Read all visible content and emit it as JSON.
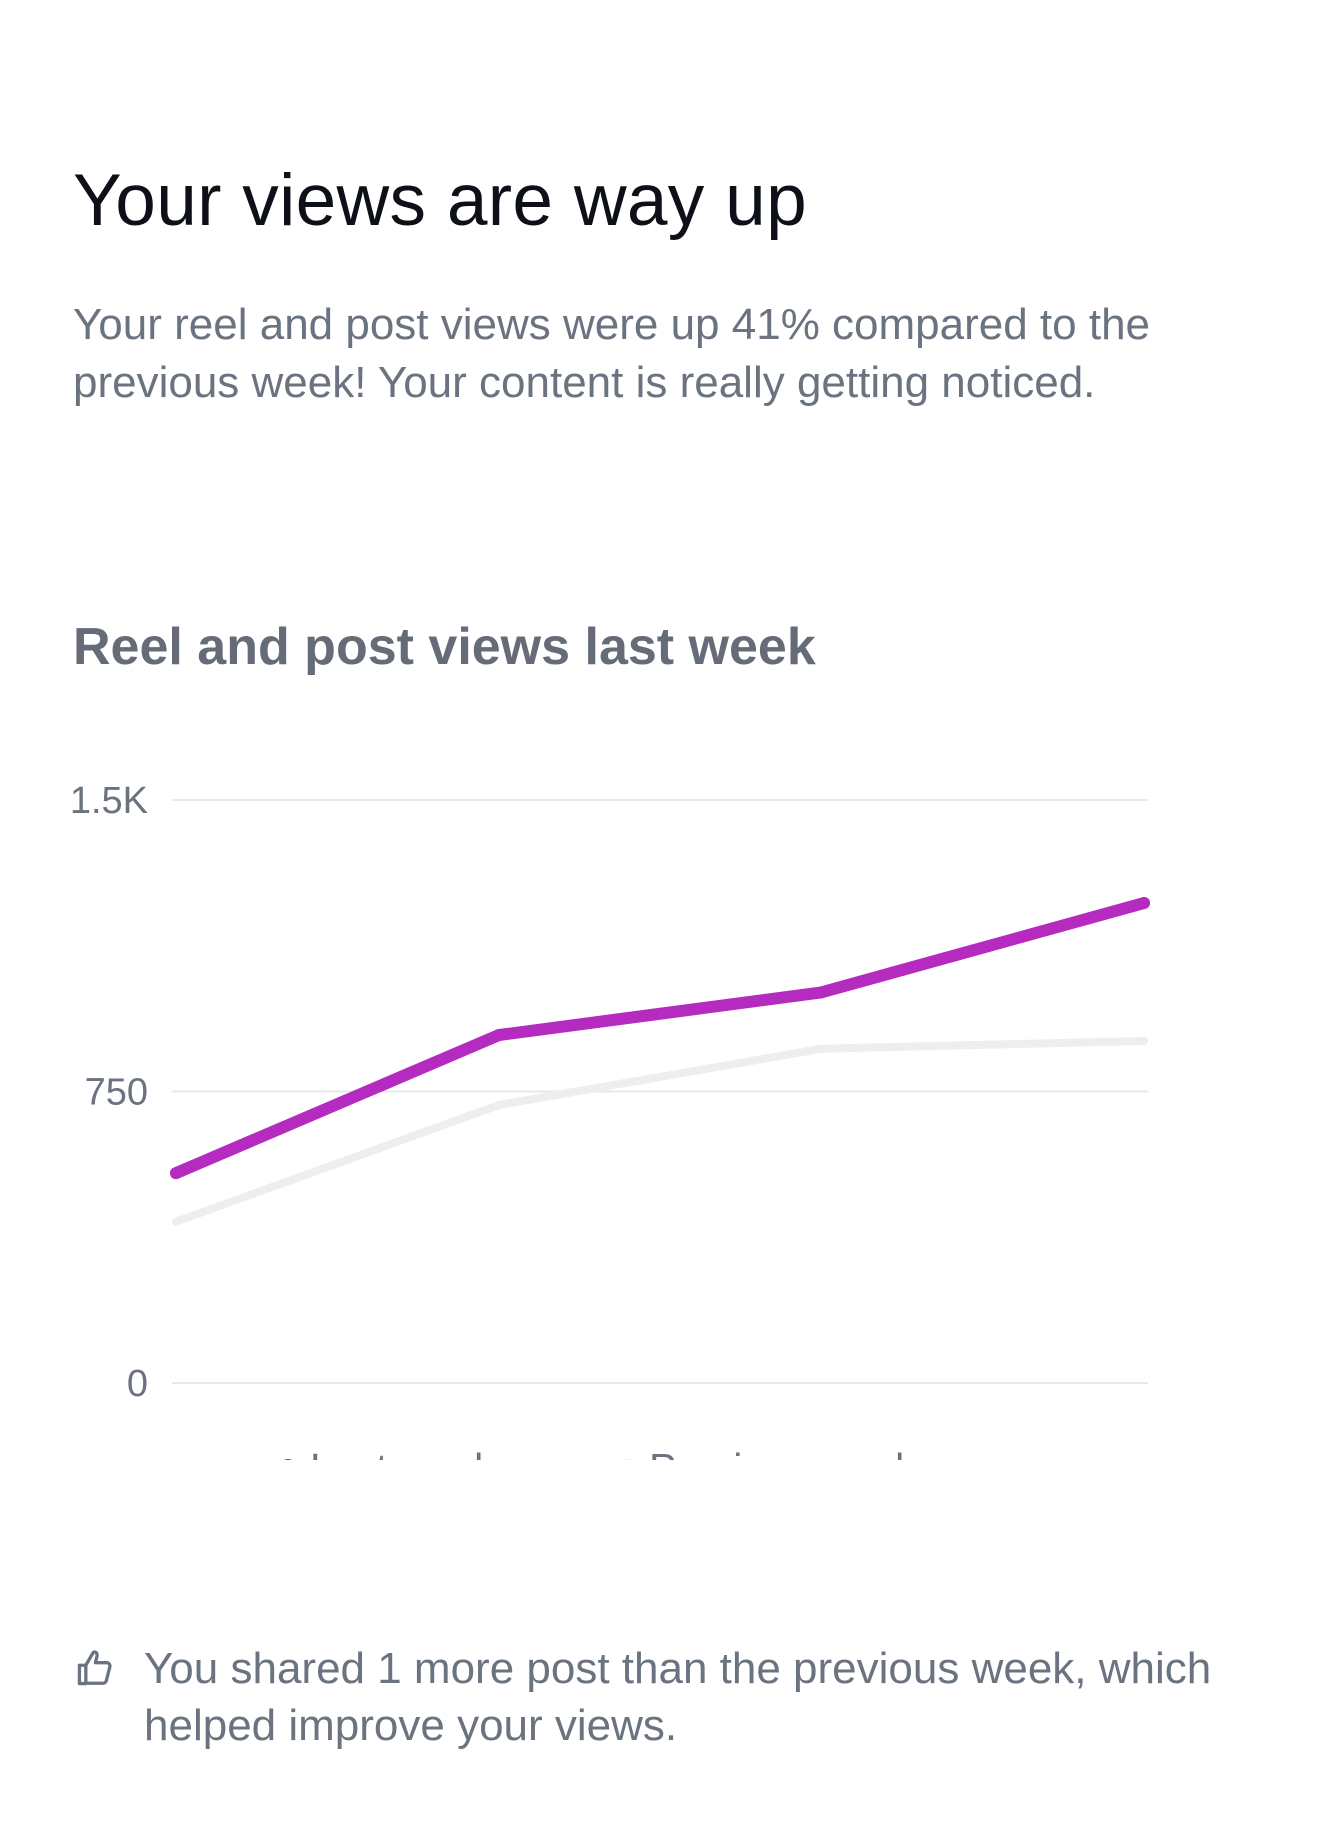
{
  "header": {
    "title": "Your views are way up",
    "description": "Your reel and post views were up 41% compared to the previous week! Your content is really getting noticed."
  },
  "chart_section": {
    "title": "Reel and post views last week"
  },
  "chart_data": {
    "type": "line",
    "title": "Reel and post views last week",
    "xlabel": "",
    "ylabel": "",
    "ylim": [
      0,
      1500
    ],
    "y_ticks": [
      {
        "value": 0,
        "label": "0"
      },
      {
        "value": 750,
        "label": "750"
      },
      {
        "value": 1500,
        "label": "1.5K"
      }
    ],
    "x": [
      1,
      2,
      3,
      4
    ],
    "grid": true,
    "legend_position": "bottom",
    "series": [
      {
        "name": "Last week",
        "color": "#b52bbf",
        "values": [
          540,
          895,
          1005,
          1235
        ]
      },
      {
        "name": "Previous week",
        "color": "#eeeeee",
        "values": [
          415,
          715,
          860,
          880
        ]
      }
    ]
  },
  "tip": {
    "icon": "thumbs-up-icon",
    "text": "You shared 1 more post than the previous week, which helped improve your views."
  }
}
